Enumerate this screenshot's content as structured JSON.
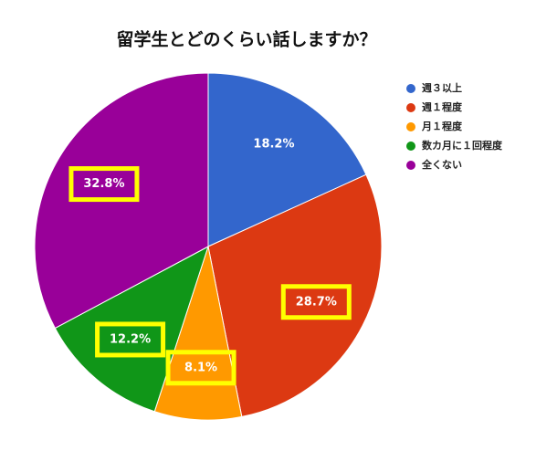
{
  "chart_data": {
    "type": "pie",
    "title": "留学生とどのくらい話しますか？",
    "categories": [
      "週３以上",
      "週１程度",
      "月１程度",
      "数カ月に１回程度",
      "全くない"
    ],
    "values": [
      18.2,
      28.7,
      8.1,
      12.2,
      32.8
    ],
    "value_labels": [
      "18.2%",
      "28.7%",
      "8.1%",
      "12.2%",
      "32.8%"
    ],
    "colors": [
      "#3366cc",
      "#dc3912",
      "#ff9900",
      "#109618",
      "#990099"
    ],
    "highlighted": [
      false,
      true,
      true,
      true,
      true
    ],
    "legend": "right"
  }
}
